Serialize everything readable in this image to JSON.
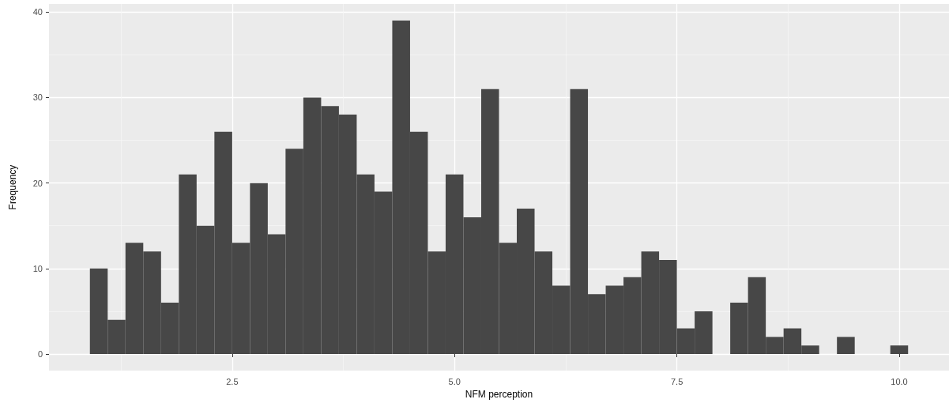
{
  "chart_data": {
    "type": "histogram",
    "xlabel": "NFM perception",
    "ylabel": "Frequency",
    "color": "#474747",
    "bins": [
      0.9,
      1.1,
      1.3,
      1.5,
      1.7,
      1.9,
      2.1,
      2.3,
      2.5,
      2.7,
      2.9,
      3.1,
      3.3,
      3.5,
      3.7,
      3.9,
      4.1,
      4.3,
      4.5,
      4.7,
      4.9,
      5.1,
      5.3,
      5.5,
      5.7,
      5.9,
      6.1,
      6.3,
      6.5,
      6.7,
      6.9,
      7.1,
      7.3,
      7.5,
      7.7,
      7.9,
      8.1,
      8.3,
      8.5,
      8.7,
      8.9,
      9.1,
      9.3,
      9.5,
      9.7,
      9.9,
      10.1
    ],
    "values": [
      10,
      4,
      13,
      12,
      6,
      21,
      15,
      26,
      13,
      20,
      14,
      24,
      30,
      29,
      28,
      21,
      19,
      39,
      26,
      12,
      21,
      16,
      31,
      13,
      17,
      12,
      8,
      31,
      7,
      8,
      9,
      12,
      11,
      3,
      5,
      0,
      6,
      9,
      2,
      3,
      1,
      0,
      2,
      0,
      0,
      1
    ],
    "xlim": [
      0.44,
      10.56
    ],
    "xticks": [
      {
        "value": 2.5,
        "label": "2.5"
      },
      {
        "value": 5,
        "label": "5.0"
      },
      {
        "value": 7.5,
        "label": "7.5"
      },
      {
        "value": 10,
        "label": "10.0"
      }
    ],
    "ylim": [
      -1.95,
      40.95
    ],
    "yticks": [
      0,
      10,
      20,
      30,
      40
    ],
    "grid": true
  }
}
